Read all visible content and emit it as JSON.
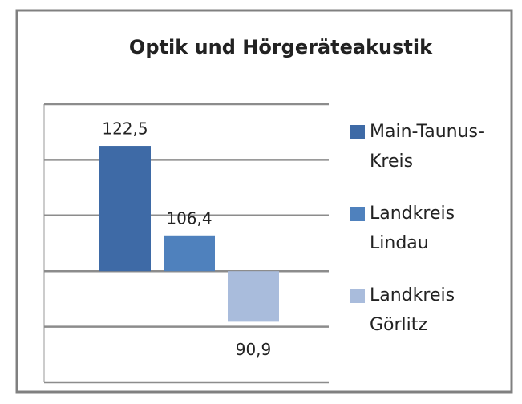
{
  "chart_data": {
    "type": "bar",
    "title": "Optik und Hörgeräteakustik",
    "categories": [
      null
    ],
    "series": [
      {
        "name": "Main-Taunus-Kreis",
        "color": "#3e6aa6",
        "values": [
          122.5
        ],
        "value_labels": [
          "122,5"
        ]
      },
      {
        "name": "Landkreis Lindau",
        "color": "#4f81bd",
        "values": [
          106.4
        ],
        "value_labels": [
          "106,4"
        ]
      },
      {
        "name": "Landkreis Görlitz",
        "color": "#a9bcdc",
        "values": [
          90.9
        ],
        "value_labels": [
          "90,9"
        ]
      }
    ],
    "baseline": 100,
    "ylim": [
      80,
      130
    ],
    "yticks": [
      80,
      90,
      100,
      110,
      120,
      130
    ],
    "grid": true,
    "legend": "right"
  }
}
